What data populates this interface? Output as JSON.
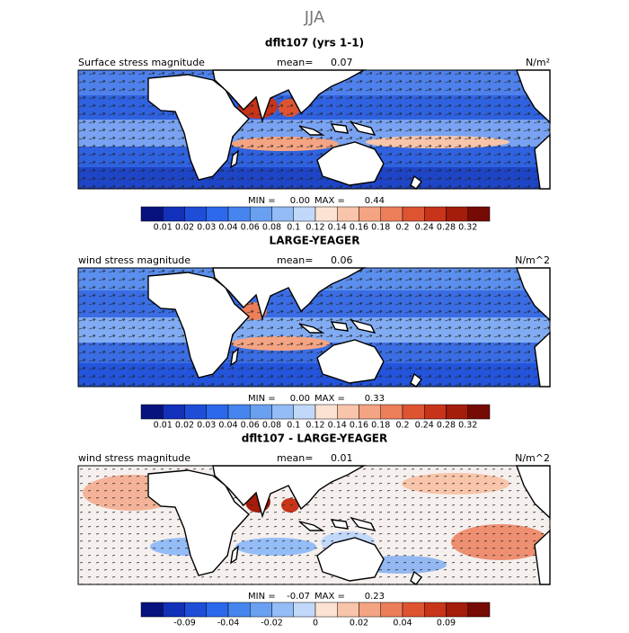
{
  "title": "JJA",
  "panels": [
    {
      "title": "dflt107 (yrs 1-1)",
      "field_label": "Surface stress magnitude",
      "mean_label": "mean=",
      "mean": 0.07,
      "units": "N/m²",
      "min_label": "MIN =",
      "min": {
        "value": 0,
        "label": "0.00"
      },
      "max_label": "MAX =",
      "max": 0.44,
      "colorbar": {
        "colors": [
          "#08127e",
          "#1230b8",
          "#1e4ed8",
          "#2c68ea",
          "#4684ee",
          "#6aa0f2",
          "#94bcf6",
          "#c2d8fa",
          "#fce2d2",
          "#f8c4aa",
          "#f4a482",
          "#ec7e5a",
          "#de5432",
          "#c8341a",
          "#a41c0c",
          "#760a04"
        ],
        "levels": [
          0.01,
          0.02,
          0.03,
          0.04,
          0.06,
          0.08,
          0.1,
          0.12,
          0.14,
          0.16,
          0.18,
          0.2,
          0.24,
          0.28,
          0.32
        ]
      }
    },
    {
      "title": "LARGE-YEAGER",
      "field_label": "wind stress magnitude",
      "mean_label": "mean=",
      "mean": 0.06,
      "units": "N/m^2",
      "min_label": "MIN =",
      "min": {
        "value": 0,
        "label": "0.00"
      },
      "max_label": "MAX =",
      "max": 0.33,
      "colorbar": {
        "colors": [
          "#08127e",
          "#1230b8",
          "#1e4ed8",
          "#2c68ea",
          "#4684ee",
          "#6aa0f2",
          "#94bcf6",
          "#c2d8fa",
          "#fce2d2",
          "#f8c4aa",
          "#f4a482",
          "#ec7e5a",
          "#de5432",
          "#c8341a",
          "#a41c0c",
          "#760a04"
        ],
        "levels": [
          0.01,
          0.02,
          0.03,
          0.04,
          0.06,
          0.08,
          0.1,
          0.12,
          0.14,
          0.16,
          0.18,
          0.2,
          0.24,
          0.28,
          0.32
        ]
      }
    },
    {
      "title": "dflt107 - LARGE-YEAGER",
      "field_label": "wind stress magnitude",
      "mean_label": "mean=",
      "mean": 0.01,
      "units": "N/m^2",
      "min_label": "MIN =",
      "min": -0.07,
      "max_label": "MAX =",
      "max": 0.23,
      "colorbar": {
        "colors": [
          "#08127e",
          "#1230b8",
          "#1e4ed8",
          "#2c68ea",
          "#4684ee",
          "#6aa0f2",
          "#94bcf6",
          "#c2d8fa",
          "#fce2d2",
          "#f8c4aa",
          "#f4a482",
          "#ec7e5a",
          "#de5432",
          "#c8341a",
          "#a41c0c",
          "#760a04"
        ],
        "levels": [
          null,
          -0.09,
          null,
          -0.04,
          null,
          -0.02,
          null,
          0,
          null,
          0.02,
          null,
          0.04,
          null,
          0.09,
          null
        ]
      }
    }
  ]
}
